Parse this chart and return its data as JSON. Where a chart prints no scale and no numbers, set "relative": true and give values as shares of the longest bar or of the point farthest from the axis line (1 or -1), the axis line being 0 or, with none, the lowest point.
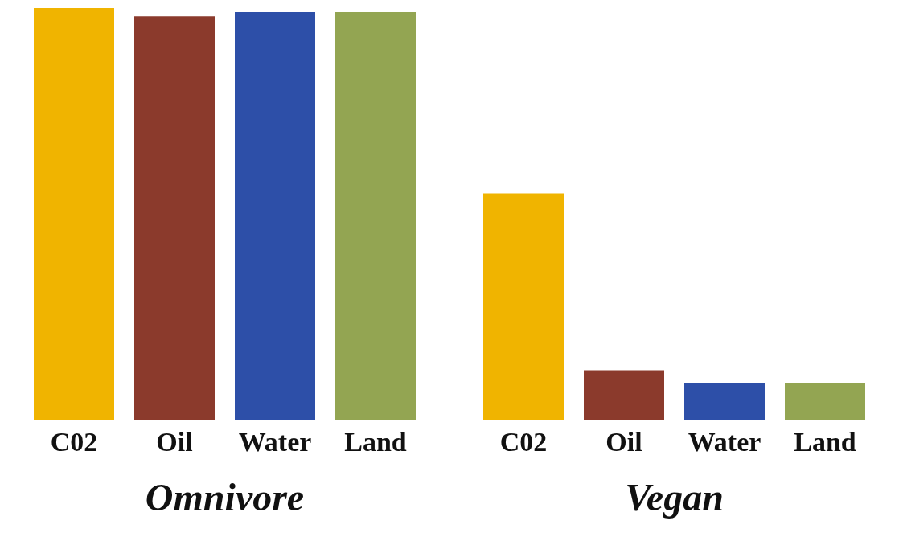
{
  "chart_data": {
    "type": "bar",
    "relative": true,
    "categories": [
      "Omnivore",
      "Vegan"
    ],
    "series": [
      {
        "name": "C02",
        "color": "#f0b400",
        "values": [
          1,
          0.55
        ]
      },
      {
        "name": "Oil",
        "color": "#8b3a2c",
        "values": [
          0.98,
          0.12
        ]
      },
      {
        "name": "Water",
        "color": "#2d4fa8",
        "values": [
          0.99,
          0.09
        ]
      },
      {
        "name": "Land",
        "color": "#93a552",
        "values": [
          0.99,
          0.09
        ]
      }
    ]
  }
}
